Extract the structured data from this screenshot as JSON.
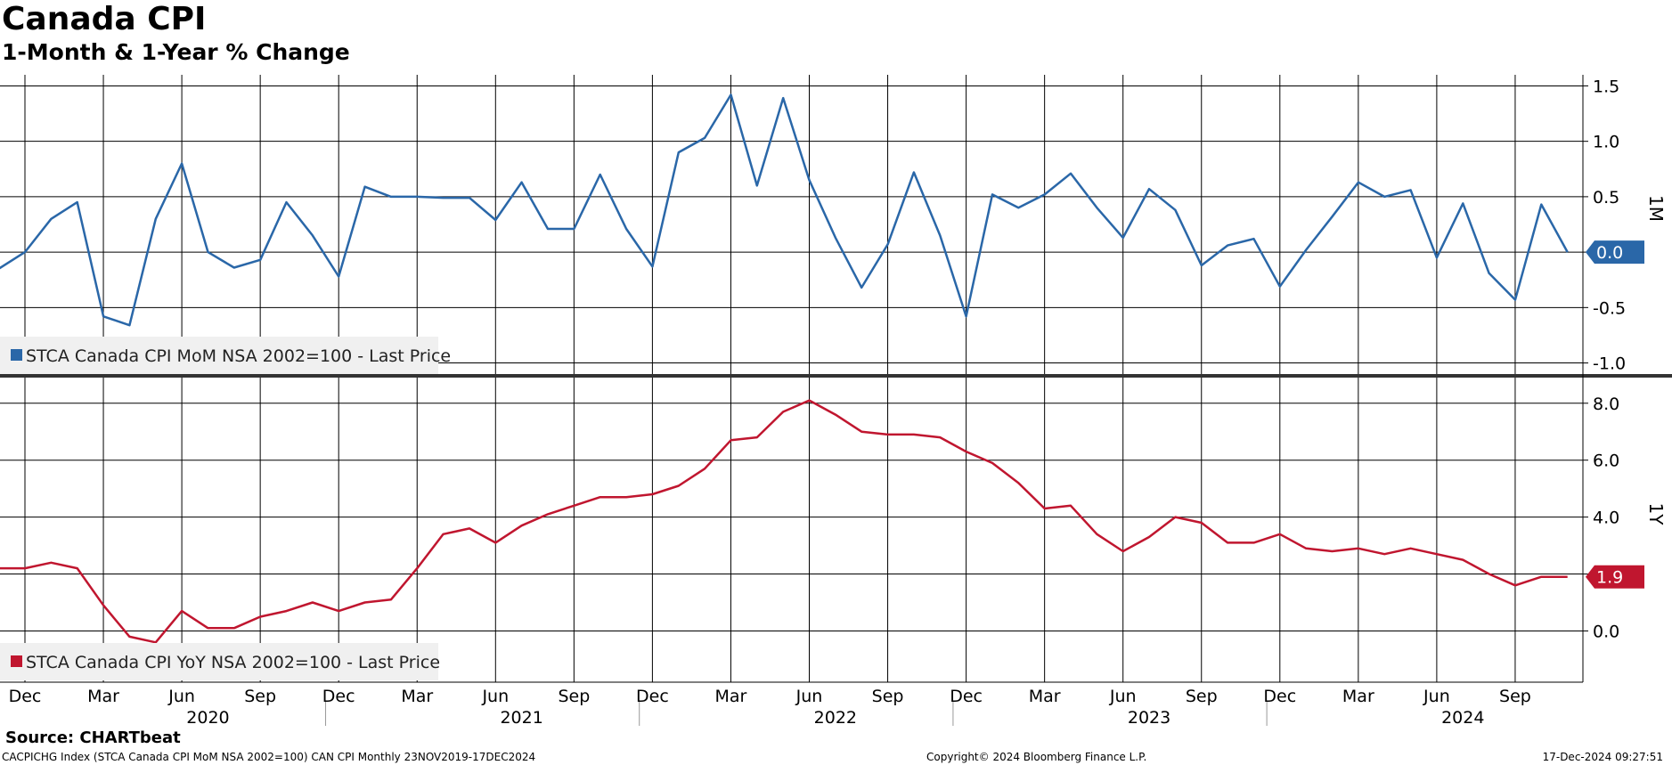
{
  "title": "Canada CPI",
  "subtitle": "1-Month & 1-Year % Change",
  "source": "Source: CHARTbeat",
  "footer": {
    "left": "CACPICHG Index (STCA Canada CPI MoM NSA 2002=100) CAN CPI  Monthly 23NOV2019-17DEC2024",
    "middle": "Copyright© 2024 Bloomberg Finance L.P.",
    "right": "17-Dec-2024 09:27:51"
  },
  "colors": {
    "mom": "#2a67a8",
    "yoy": "#c0162f"
  },
  "chart_data": [
    {
      "type": "line",
      "panel": "top",
      "axis_label": "1M",
      "legend": "STCA Canada CPI MoM NSA 2002=100 - Last Price",
      "last_value_label": "0.0",
      "ylim": [
        -1.1,
        1.6
      ],
      "yticks": [
        1.5,
        1.0,
        0.5,
        0.0,
        -0.5,
        -1.0
      ],
      "ytick_labels": [
        "1.5",
        "1.0",
        "0.5",
        "0.0",
        "-0.5",
        "-1.0"
      ],
      "x_start": "2019-11",
      "values": [
        -0.15,
        0.0,
        0.3,
        0.45,
        -0.58,
        -0.66,
        0.3,
        0.8,
        0.0,
        -0.14,
        -0.07,
        0.45,
        0.15,
        -0.22,
        0.59,
        0.5,
        0.5,
        0.49,
        0.49,
        0.29,
        0.63,
        0.21,
        0.21,
        0.7,
        0.21,
        -0.13,
        0.9,
        1.03,
        1.42,
        0.6,
        1.39,
        0.65,
        0.13,
        -0.32,
        0.07,
        0.72,
        0.15,
        -0.58,
        0.52,
        0.4,
        0.52,
        0.71,
        0.4,
        0.13,
        0.57,
        0.38,
        -0.12,
        0.06,
        0.12,
        -0.31,
        0.02,
        0.32,
        0.63,
        0.5,
        0.56,
        -0.05,
        0.44,
        -0.19,
        -0.43,
        0.43,
        0.0
      ]
    },
    {
      "type": "line",
      "panel": "bottom",
      "axis_label": "1Y",
      "legend": "STCA Canada CPI YoY NSA 2002=100 - Last Price",
      "last_value_label": "1.9",
      "ylim": [
        -1.8,
        8.9
      ],
      "yticks": [
        8.0,
        6.0,
        4.0,
        2.0,
        0.0
      ],
      "ytick_labels": [
        "8.0",
        "6.0",
        "4.0",
        "",
        "0.0"
      ],
      "x_start": "2019-11",
      "values": [
        2.2,
        2.2,
        2.4,
        2.2,
        0.9,
        -0.2,
        -0.4,
        0.7,
        0.1,
        0.1,
        0.5,
        0.7,
        1.0,
        0.7,
        1.0,
        1.1,
        2.2,
        3.4,
        3.6,
        3.1,
        3.7,
        4.1,
        4.4,
        4.7,
        4.7,
        4.8,
        5.1,
        5.7,
        6.7,
        6.8,
        7.7,
        8.1,
        7.6,
        7.0,
        6.9,
        6.9,
        6.8,
        6.3,
        5.9,
        5.2,
        4.3,
        4.4,
        3.4,
        2.8,
        3.3,
        4.0,
        3.8,
        3.1,
        3.1,
        3.4,
        2.9,
        2.8,
        2.9,
        2.7,
        2.9,
        2.7,
        2.5,
        2.0,
        1.6,
        1.9,
        1.9
      ]
    }
  ],
  "x_axis": {
    "month_labels": [
      {
        "m": 0,
        "label": "Dec"
      },
      {
        "m": 3,
        "label": "Mar"
      },
      {
        "m": 6,
        "label": "Jun"
      },
      {
        "m": 9,
        "label": "Sep"
      },
      {
        "m": 12,
        "label": "Dec"
      },
      {
        "m": 15,
        "label": "Mar"
      },
      {
        "m": 18,
        "label": "Jun"
      },
      {
        "m": 21,
        "label": "Sep"
      },
      {
        "m": 24,
        "label": "Dec"
      },
      {
        "m": 27,
        "label": "Mar"
      },
      {
        "m": 30,
        "label": "Jun"
      },
      {
        "m": 33,
        "label": "Sep"
      },
      {
        "m": 36,
        "label": "Dec"
      },
      {
        "m": 39,
        "label": "Mar"
      },
      {
        "m": 42,
        "label": "Jun"
      },
      {
        "m": 45,
        "label": "Sep"
      },
      {
        "m": 48,
        "label": "Dec"
      },
      {
        "m": 51,
        "label": "Mar"
      },
      {
        "m": 54,
        "label": "Jun"
      },
      {
        "m": 57,
        "label": "Sep"
      }
    ],
    "year_labels": [
      {
        "m": 7,
        "label": "2020"
      },
      {
        "m": 19,
        "label": "2021"
      },
      {
        "m": 31,
        "label": "2022"
      },
      {
        "m": 43,
        "label": "2023"
      },
      {
        "m": 55,
        "label": "2024"
      }
    ]
  }
}
